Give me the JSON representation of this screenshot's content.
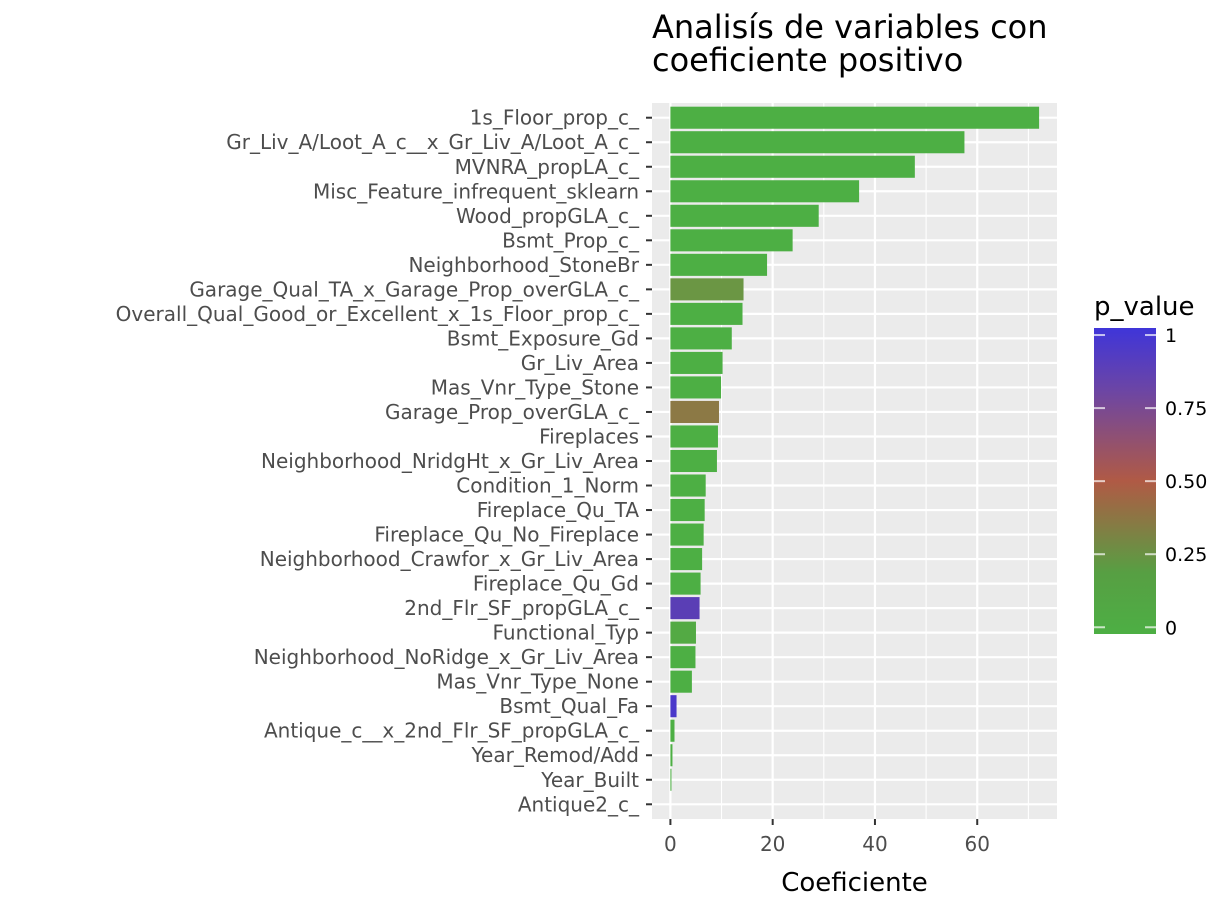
{
  "chart_data": {
    "type": "bar",
    "orientation": "horizontal",
    "title": "Analisís de variables con coeficiente positivo",
    "title_lines": [
      "Analisís de variables con",
      "coeficiente positivo"
    ],
    "xlabel": "Coeficiente",
    "ylabel": "",
    "xlim": [
      -3.6,
      75.6
    ],
    "x_ticks": [
      0,
      20,
      40,
      60
    ],
    "grid": true,
    "legend": {
      "title": "p_value",
      "placement": "right",
      "type": "colorbar",
      "ticks": [
        0,
        0.25,
        0.5,
        0.75,
        1
      ],
      "tick_labels": [
        "0",
        "0.25",
        "0.50",
        "0.75",
        "1"
      ],
      "colors": {
        "low": "#4daf44",
        "mid": "#b05a45",
        "high": "#3f35d9"
      }
    },
    "categories": [
      "1s_Floor_prop_c_",
      "Gr_Liv_A/Loot_A_c__x_Gr_Liv_A/Loot_A_c_",
      "MVNRA_propLA_c_",
      "Misc_Feature_infrequent_sklearn",
      "Wood_propGLA_c_",
      "Bsmt_Prop_c_",
      "Neighborhood_StoneBr",
      "Garage_Qual_TA_x_Garage_Prop_overGLA_c_",
      "Overall_Qual_Good_or_Excellent_x_1s_Floor_prop_c_",
      "Bsmt_Exposure_Gd",
      "Gr_Liv_Area",
      "Mas_Vnr_Type_Stone",
      "Garage_Prop_overGLA_c_",
      "Fireplaces",
      "Neighborhood_NridgHt_x_Gr_Liv_Area",
      "Condition_1_Norm",
      "Fireplace_Qu_TA",
      "Fireplace_Qu_No_Fireplace",
      "Neighborhood_Crawfor_x_Gr_Liv_Area",
      "Fireplace_Qu_Gd",
      "2nd_Flr_SF_propGLA_c_",
      "Functional_Typ",
      "Neighborhood_NoRidge_x_Gr_Liv_Area",
      "Mas_Vnr_Type_None",
      "Bsmt_Qual_Fa",
      "Antique_c__x_2nd_Flr_SF_propGLA_c_",
      "Year_Remod/Add",
      "Year_Built",
      "Antique2_c_"
    ],
    "values": [
      72.1,
      57.5,
      47.8,
      36.9,
      29.0,
      23.9,
      18.9,
      14.3,
      14.1,
      12.0,
      10.2,
      9.9,
      9.5,
      9.3,
      9.1,
      6.9,
      6.7,
      6.5,
      6.2,
      5.9,
      5.7,
      5.0,
      4.9,
      4.2,
      1.2,
      0.8,
      0.4,
      0.2,
      0.0
    ],
    "p_values": [
      0.0,
      0.0,
      0.0,
      0.0,
      0.0,
      0.0,
      0.0,
      0.15,
      0.0,
      0.0,
      0.0,
      0.0,
      0.32,
      0.0,
      0.0,
      0.0,
      0.0,
      0.0,
      0.0,
      0.0,
      0.88,
      0.03,
      0.0,
      0.0,
      0.95,
      0.0,
      0.0,
      0.0,
      0.0
    ]
  }
}
